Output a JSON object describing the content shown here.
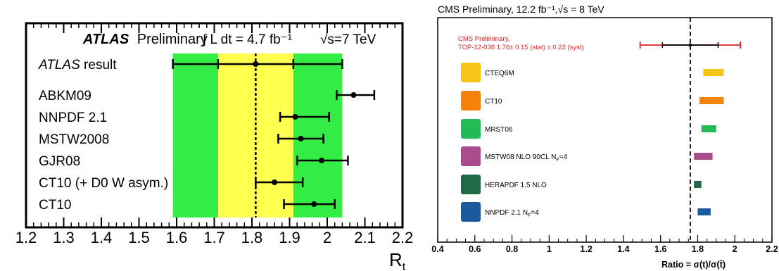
{
  "chart_data": [
    {
      "type": "scatter",
      "title_prefix": "ATLAS",
      "title_suffix": "Preliminary",
      "luminosity_text": "∫ L dt = 4.7 fb⁻¹",
      "energy_text": "√s=7 TeV",
      "xlabel": "R",
      "xlabel_sub": "t",
      "xlim": [
        1.2,
        2.2
      ],
      "xticks": [
        "1.2",
        "1.3",
        "1.4",
        "1.5",
        "1.6",
        "1.7",
        "1.8",
        "1.9",
        "2",
        "2.1",
        "2.2"
      ],
      "central_value": 1.81,
      "band_inner": [
        1.71,
        1.91
      ],
      "band_outer": [
        1.59,
        2.04
      ],
      "band_inner_color": "#ffff4d",
      "band_outer_color": "#33ee44",
      "points": [
        {
          "label": "ATLAS result",
          "italic_prefix": "ATLAS",
          "x": 1.81,
          "xerr_low": 1.59,
          "xerr_high": 2.04,
          "inner_low": 1.71,
          "inner_high": 1.91
        },
        {
          "label": "ABKM09",
          "x": 2.07,
          "xerr_low": 2.025,
          "xerr_high": 2.125
        },
        {
          "label": "NNPDF 2.1",
          "x": 1.915,
          "xerr_low": 1.875,
          "xerr_high": 2.005
        },
        {
          "label": "MSTW2008",
          "x": 1.93,
          "xerr_low": 1.87,
          "xerr_high": 1.99
        },
        {
          "label": "GJR08",
          "x": 1.985,
          "xerr_low": 1.92,
          "xerr_high": 2.055
        },
        {
          "label": "CT10 (+ D0 W asym.)",
          "x": 1.86,
          "xerr_low": 1.81,
          "xerr_high": 1.935
        },
        {
          "label": "CT10",
          "x": 1.965,
          "xerr_low": 1.885,
          "xerr_high": 2.02
        }
      ]
    },
    {
      "type": "bar",
      "header": "CMS Preliminary, 12.2 fb⁻¹,√s = 8 TeV",
      "result_label_1": "CMS Preliminary,",
      "result_label_2": "TOP-12-038 1.76± 0.15 (stat) ± 0.22 (syst)",
      "result_color": "#dd2222",
      "central_value": 1.76,
      "stat_err": [
        1.61,
        1.91
      ],
      "total_err": [
        1.49,
        2.03
      ],
      "xlabel": "Ratio = σ(t)/σ(t̄)",
      "xlim": [
        0.4,
        2.2
      ],
      "xticks": [
        "0.4",
        "0.6",
        "0.8",
        "1",
        "1.2",
        "1.4",
        "1.6",
        "1.8",
        "2",
        "2.2"
      ],
      "series": [
        {
          "name": "CTEQ6M",
          "low": 1.83,
          "high": 1.94,
          "color": "#f5c518"
        },
        {
          "name": "CT10",
          "low": 1.81,
          "high": 1.94,
          "color": "#f5820a"
        },
        {
          "name": "MRST06",
          "low": 1.82,
          "high": 1.9,
          "color": "#22bb55"
        },
        {
          "name": "MSTW08 NLO 90CL N",
          "name_sub": "F",
          "name_tail": "=4",
          "low": 1.78,
          "high": 1.88,
          "color": "#a84c8c"
        },
        {
          "name": "HERAPDF 1.5 NLO",
          "low": 1.78,
          "high": 1.82,
          "color": "#1e6b45"
        },
        {
          "name": "NNPDF 2.1 N",
          "name_sub": "F",
          "name_tail": "=4",
          "low": 1.8,
          "high": 1.87,
          "color": "#1a5a9a"
        }
      ]
    }
  ]
}
